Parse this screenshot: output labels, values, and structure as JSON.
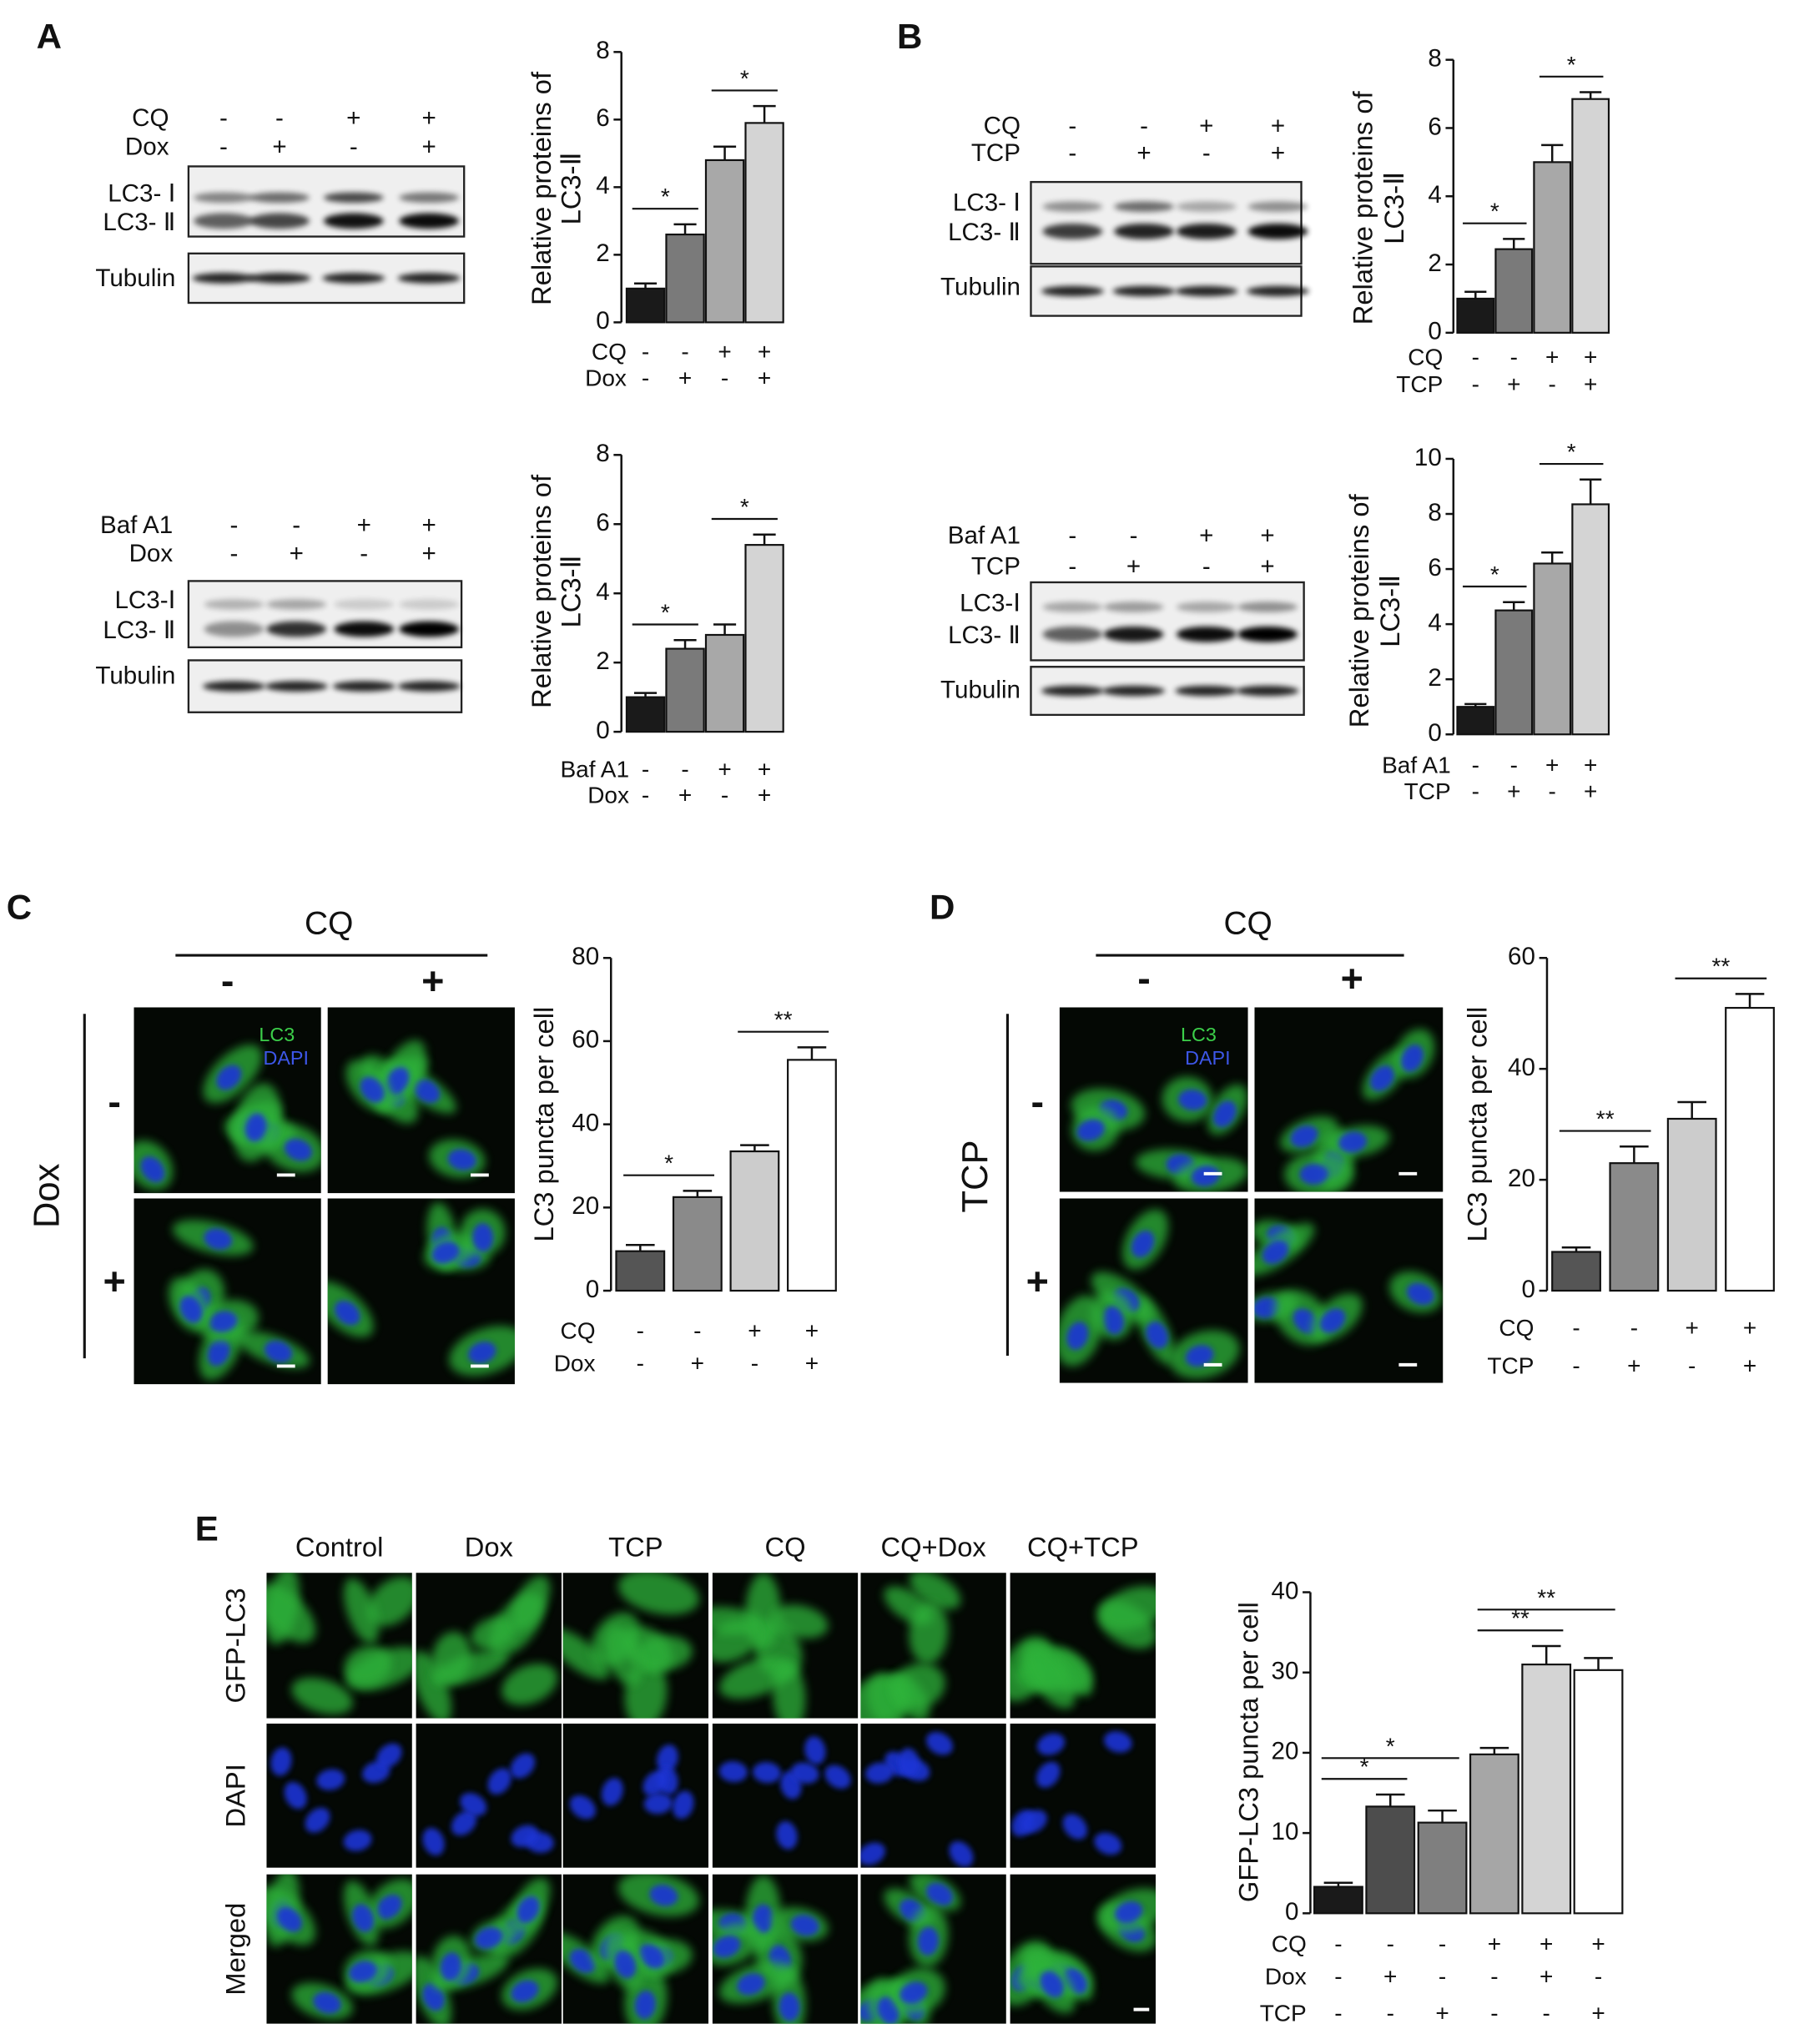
{
  "panel_labels": [
    "A",
    "B",
    "C",
    "D",
    "E"
  ],
  "chart_data": [
    {
      "type": "bar",
      "ylabel": [
        "Relative proteins of",
        "LC3-Ⅱ"
      ],
      "ylim": [
        0,
        8
      ],
      "yticks": [
        0,
        2,
        4,
        6,
        8
      ],
      "values": [
        1.0,
        2.6,
        4.8,
        5.9
      ],
      "errors": [
        0.15,
        0.3,
        0.4,
        0.5
      ],
      "colors": [
        "#1a1a1a",
        "#7a7a7a",
        "#a8a8a8",
        "#d4d4d4"
      ],
      "conditions": [
        {
          "name": "CQ",
          "signs": [
            "-",
            "-",
            "+",
            "+"
          ]
        },
        {
          "name": "Dox",
          "signs": [
            "-",
            "+",
            "-",
            "+"
          ]
        }
      ],
      "comparisons": [
        {
          "groups": [
            0,
            1
          ],
          "label": "*"
        },
        {
          "groups": [
            2,
            3
          ],
          "label": "*"
        }
      ]
    },
    {
      "type": "bar",
      "ylabel": [
        "Relative proteins of",
        "LC3-Ⅱ"
      ],
      "ylim": [
        0,
        8
      ],
      "yticks": [
        0,
        2,
        4,
        6,
        8
      ],
      "values": [
        1.0,
        2.4,
        2.8,
        5.4
      ],
      "errors": [
        0.12,
        0.25,
        0.3,
        0.3
      ],
      "colors": [
        "#1a1a1a",
        "#7a7a7a",
        "#a8a8a8",
        "#d4d4d4"
      ],
      "conditions": [
        {
          "name": "Baf A1",
          "signs": [
            "-",
            "-",
            "+",
            "+"
          ]
        },
        {
          "name": "Dox",
          "signs": [
            "-",
            "+",
            "-",
            "+"
          ]
        }
      ],
      "comparisons": [
        {
          "groups": [
            0,
            1
          ],
          "label": "*"
        },
        {
          "groups": [
            2,
            3
          ],
          "label": "*"
        }
      ]
    },
    {
      "type": "bar",
      "ylabel": [
        "Relative proteins of",
        "LC3-Ⅱ"
      ],
      "ylim": [
        0,
        8
      ],
      "yticks": [
        0,
        2,
        4,
        6,
        8
      ],
      "values": [
        1.0,
        2.45,
        5.0,
        6.85
      ],
      "errors": [
        0.2,
        0.3,
        0.5,
        0.2
      ],
      "colors": [
        "#1a1a1a",
        "#7a7a7a",
        "#a8a8a8",
        "#d4d4d4"
      ],
      "conditions": [
        {
          "name": "CQ",
          "signs": [
            "-",
            "-",
            "+",
            "+"
          ]
        },
        {
          "name": "TCP",
          "signs": [
            "-",
            "+",
            "-",
            "+"
          ]
        }
      ],
      "comparisons": [
        {
          "groups": [
            0,
            1
          ],
          "label": "*"
        },
        {
          "groups": [
            2,
            3
          ],
          "label": "*"
        }
      ]
    },
    {
      "type": "bar",
      "ylabel": [
        "Relative proteins of",
        "LC3-Ⅱ"
      ],
      "ylim": [
        0,
        10
      ],
      "yticks": [
        0,
        2,
        4,
        6,
        8,
        10
      ],
      "values": [
        1.0,
        4.5,
        6.2,
        8.35
      ],
      "errors": [
        0.1,
        0.3,
        0.4,
        0.9
      ],
      "colors": [
        "#1a1a1a",
        "#7a7a7a",
        "#a8a8a8",
        "#d4d4d4"
      ],
      "conditions": [
        {
          "name": "Baf A1",
          "signs": [
            "-",
            "-",
            "+",
            "+"
          ]
        },
        {
          "name": "TCP",
          "signs": [
            "-",
            "+",
            "-",
            "+"
          ]
        }
      ],
      "comparisons": [
        {
          "groups": [
            0,
            1
          ],
          "label": "*"
        },
        {
          "groups": [
            2,
            3
          ],
          "label": "*"
        }
      ]
    },
    {
      "type": "bar",
      "ylabel": "LC3 puncta per cell",
      "ylim": [
        0,
        80
      ],
      "yticks": [
        0,
        20,
        40,
        60,
        80
      ],
      "values": [
        9.5,
        22.5,
        33.5,
        55.5
      ],
      "errors": [
        1.5,
        1.5,
        1.5,
        3
      ],
      "colors": [
        "#555555",
        "#8a8a8a",
        "#cccccc",
        "#ffffff"
      ],
      "conditions": [
        {
          "name": "CQ",
          "signs": [
            "-",
            "-",
            "+",
            "+"
          ]
        },
        {
          "name": "Dox",
          "signs": [
            "-",
            "+",
            "-",
            "+"
          ]
        }
      ],
      "comparisons": [
        {
          "groups": [
            0,
            1
          ],
          "label": "*"
        },
        {
          "groups": [
            2,
            3
          ],
          "label": "**"
        }
      ]
    },
    {
      "type": "bar",
      "ylabel": "LC3 puncta per cell",
      "ylim": [
        0,
        60
      ],
      "yticks": [
        0,
        20,
        40,
        60
      ],
      "values": [
        7,
        23,
        31,
        51
      ],
      "errors": [
        0.8,
        3,
        3,
        2.5
      ],
      "colors": [
        "#555555",
        "#8a8a8a",
        "#cccccc",
        "#ffffff"
      ],
      "conditions": [
        {
          "name": "CQ",
          "signs": [
            "-",
            "-",
            "+",
            "+"
          ]
        },
        {
          "name": "TCP",
          "signs": [
            "-",
            "+",
            "-",
            "+"
          ]
        }
      ],
      "comparisons": [
        {
          "groups": [
            0,
            1
          ],
          "label": "**"
        },
        {
          "groups": [
            2,
            3
          ],
          "label": "**"
        }
      ]
    },
    {
      "type": "bar",
      "ylabel": "GFP-LC3 puncta per cell",
      "ylim": [
        0,
        40
      ],
      "yticks": [
        0,
        10,
        20,
        30,
        40
      ],
      "values": [
        3.3,
        13.3,
        11.3,
        19.8,
        31,
        30.3
      ],
      "errors": [
        0.5,
        1.5,
        1.5,
        0.8,
        2.3,
        1.5
      ],
      "colors": [
        "#1a1a1a",
        "#4d4d4d",
        "#7f7f7f",
        "#a6a6a6",
        "#d4d4d4",
        "#ffffff"
      ],
      "conditions": [
        {
          "name": "CQ",
          "signs": [
            "-",
            "-",
            "-",
            "+",
            "+",
            "+"
          ]
        },
        {
          "name": "Dox",
          "signs": [
            "-",
            "+",
            "-",
            "-",
            "+",
            "-"
          ]
        },
        {
          "name": "TCP",
          "signs": [
            "-",
            "-",
            "+",
            "-",
            "-",
            "+"
          ]
        }
      ],
      "comparisons": [
        {
          "groups": [
            0,
            1
          ],
          "label": "*"
        },
        {
          "groups": [
            0,
            2
          ],
          "label": "*"
        },
        {
          "groups": [
            3,
            4
          ],
          "label": "**"
        },
        {
          "groups": [
            3,
            5
          ],
          "label": "**"
        }
      ]
    }
  ],
  "blots": [
    {
      "conditions": [
        {
          "name": "CQ",
          "signs": [
            "-",
            "-",
            "+",
            "+"
          ]
        },
        {
          "name": "Dox",
          "signs": [
            "-",
            "+",
            "-",
            "+"
          ]
        }
      ],
      "bands": [
        "LC3- Ⅰ",
        "LC3- Ⅱ"
      ],
      "loading": "Tubulin"
    },
    {
      "conditions": [
        {
          "name": "Baf A1",
          "signs": [
            "-",
            "-",
            "+",
            "+"
          ]
        },
        {
          "name": "Dox",
          "signs": [
            "-",
            "+",
            "-",
            "+"
          ]
        }
      ],
      "bands": [
        "LC3-Ⅰ",
        "LC3- Ⅱ"
      ],
      "loading": "Tubulin"
    },
    {
      "conditions": [
        {
          "name": "CQ",
          "signs": [
            "-",
            "-",
            "+",
            "+"
          ]
        },
        {
          "name": "TCP",
          "signs": [
            "-",
            "+",
            "-",
            "+"
          ]
        }
      ],
      "bands": [
        "LC3- Ⅰ",
        "LC3- Ⅱ"
      ],
      "loading": "Tubulin"
    },
    {
      "conditions": [
        {
          "name": "Baf A1",
          "signs": [
            "-",
            "-",
            "+",
            "+"
          ]
        },
        {
          "name": "TCP",
          "signs": [
            "-",
            "+",
            "-",
            "+"
          ]
        }
      ],
      "bands": [
        "LC3-Ⅰ",
        "LC3- Ⅱ"
      ],
      "loading": "Tubulin"
    }
  ],
  "micrographs": [
    {
      "title": "CQ",
      "columns": [
        "-",
        "+"
      ],
      "row_title": "Dox",
      "rows": [
        "-",
        "+"
      ],
      "stains": [
        "LC3",
        "DAPI"
      ]
    },
    {
      "title": "CQ",
      "columns": [
        "-",
        "+"
      ],
      "row_title": "TCP",
      "rows": [
        "-",
        "+"
      ],
      "stains": [
        "LC3",
        "DAPI"
      ]
    }
  ],
  "panel_e": {
    "columns": [
      "Control",
      "Dox",
      "TCP",
      "CQ",
      "CQ+Dox",
      "CQ+TCP"
    ],
    "rows": [
      "GFP-LC3",
      "DAPI",
      "Merged"
    ]
  }
}
